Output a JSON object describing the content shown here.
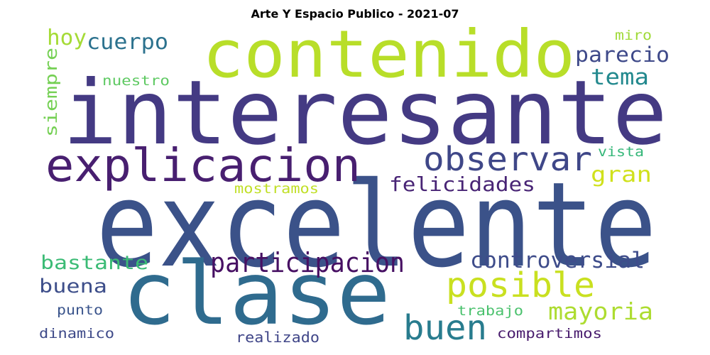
{
  "figure": {
    "title": "Arte Y Espacio Publico - 2021-07"
  },
  "words": [
    {
      "text": "excelente",
      "color": "#3b5289"
    },
    {
      "text": "interesante",
      "color": "#443a83"
    },
    {
      "text": "contenido",
      "color": "#b8de29"
    },
    {
      "text": "clase",
      "color": "#2f6b8e"
    },
    {
      "text": "explicacion",
      "color": "#481f70"
    },
    {
      "text": "observar",
      "color": "#3f4788"
    },
    {
      "text": "participacion",
      "color": "#471063"
    },
    {
      "text": "posible",
      "color": "#c9e020"
    },
    {
      "text": "buen",
      "color": "#287c8e"
    },
    {
      "text": "felicidades",
      "color": "#482475"
    },
    {
      "text": "controversial",
      "color": "#3e4c8a"
    },
    {
      "text": "mayoria",
      "color": "#addc30"
    },
    {
      "text": "parecio",
      "color": "#3e4989"
    },
    {
      "text": "tema",
      "color": "#23898e"
    },
    {
      "text": "gran",
      "color": "#d0e11c"
    },
    {
      "text": "cuerpo",
      "color": "#2c728e"
    },
    {
      "text": "hoy",
      "color": "#a5db36"
    },
    {
      "text": "siempre",
      "color": "#75d054"
    },
    {
      "text": "bastante",
      "color": "#3bbb75"
    },
    {
      "text": "buena",
      "color": "#3d4e8a"
    },
    {
      "text": "nuestro",
      "color": "#5ec962"
    },
    {
      "text": "miro",
      "color": "#a0da39"
    },
    {
      "text": "vista",
      "color": "#35b779"
    },
    {
      "text": "mostramos",
      "color": "#c0df25"
    },
    {
      "text": "punto",
      "color": "#3a548c"
    },
    {
      "text": "dinamico",
      "color": "#3e4a89"
    },
    {
      "text": "realizado",
      "color": "#404688"
    },
    {
      "text": "trabajo",
      "color": "#4ac16d"
    },
    {
      "text": "compartimos",
      "color": "#481b6d"
    }
  ]
}
